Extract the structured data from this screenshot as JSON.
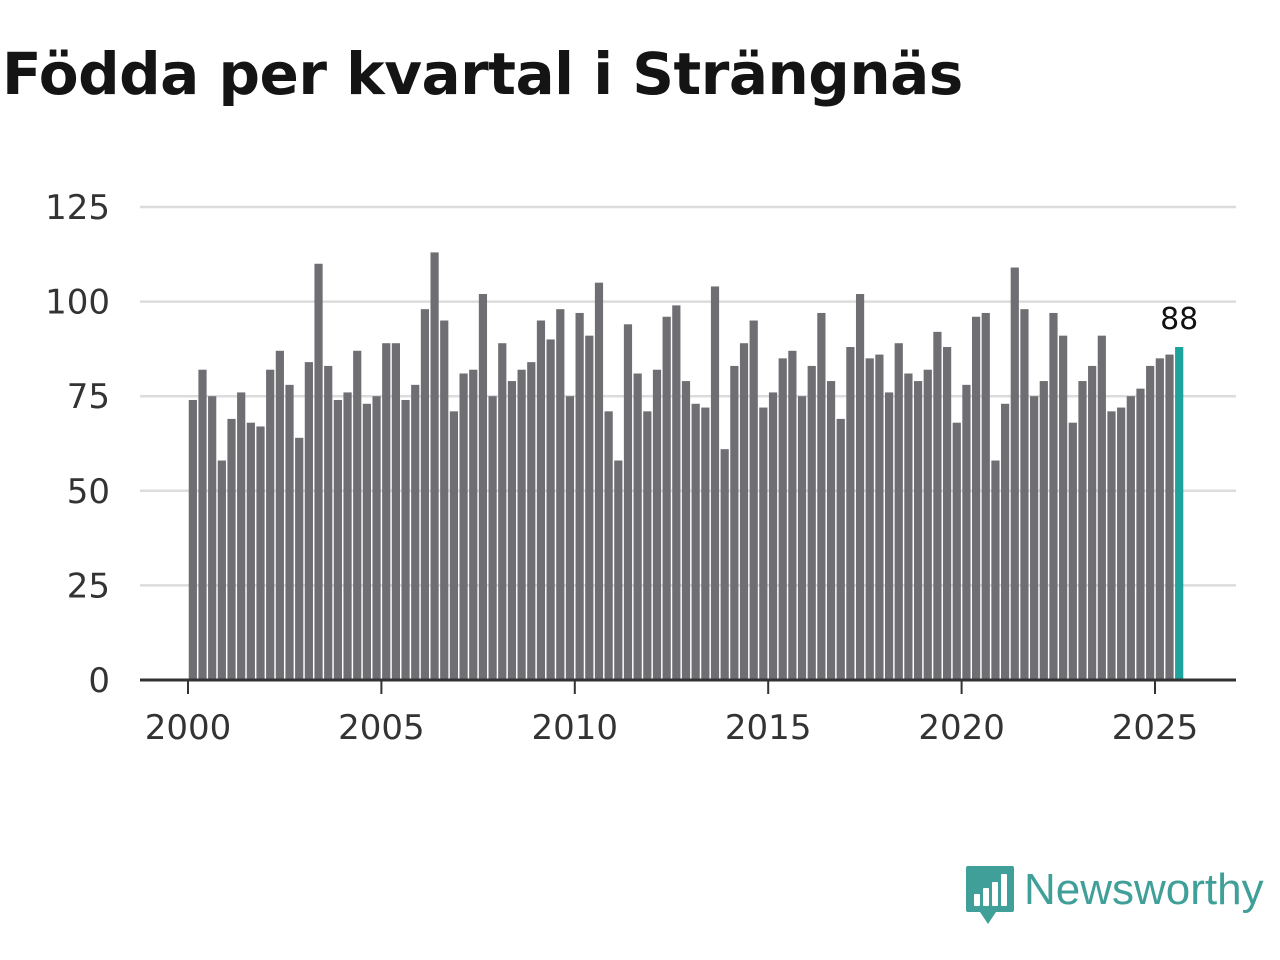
{
  "title": "Födda per kvartal i Strängnäs",
  "brand": {
    "name": "Newsworthy",
    "icon": "newsworthy-logo-icon"
  },
  "colors": {
    "bar": "#6e6e73",
    "highlight": "#1ba39c",
    "grid": "#dcdcdc",
    "axis": "#333333",
    "text": "#333333",
    "brand": "#40a099"
  },
  "chart_data": {
    "type": "bar",
    "title": "Födda per kvartal i Strängnäs",
    "xlabel": "",
    "ylabel": "",
    "ylim": [
      0,
      125
    ],
    "yticks": [
      0,
      25,
      50,
      75,
      100,
      125
    ],
    "xticks": [
      2000,
      2005,
      2010,
      2015,
      2020,
      2025
    ],
    "x_start_year": 2000,
    "periods_per_year": 4,
    "grid": true,
    "values": [
      74,
      82,
      75,
      58,
      69,
      76,
      68,
      67,
      82,
      87,
      78,
      64,
      84,
      110,
      83,
      74,
      76,
      87,
      73,
      75,
      89,
      89,
      74,
      78,
      98,
      113,
      95,
      71,
      81,
      82,
      102,
      75,
      89,
      79,
      82,
      84,
      95,
      90,
      98,
      75,
      97,
      91,
      105,
      71,
      58,
      94,
      81,
      71,
      82,
      96,
      99,
      79,
      73,
      72,
      104,
      61,
      83,
      89,
      95,
      72,
      76,
      85,
      87,
      75,
      83,
      97,
      79,
      69,
      88,
      102,
      85,
      86,
      76,
      89,
      81,
      79,
      82,
      92,
      88,
      68,
      78,
      96,
      97,
      58,
      73,
      109,
      98,
      75,
      79,
      97,
      91,
      68,
      79,
      83,
      91,
      71,
      72,
      75,
      77,
      83,
      85,
      86,
      88
    ],
    "highlight_last": true,
    "last_label": "88"
  }
}
